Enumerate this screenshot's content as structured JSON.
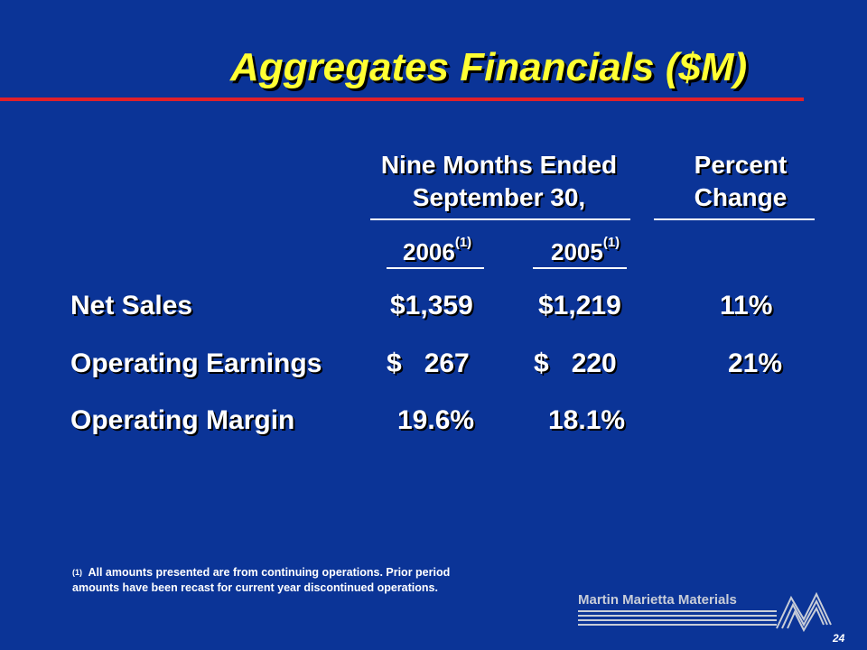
{
  "title": "Aggregates Financials ($M)",
  "header": {
    "period_line1": "Nine Months Ended",
    "period_line2": "September 30,",
    "change_line1": "Percent",
    "change_line2": "Change",
    "year1": "2006",
    "year1_note": "(1)",
    "year2": "2005",
    "year2_note": "(1)"
  },
  "rows": [
    {
      "label": "Net Sales",
      "v2006": "$1,359",
      "v2005": "$1,219",
      "change": "11%"
    },
    {
      "label": "Operating Earnings",
      "v2006": "$   267",
      "v2005": "$   220",
      "change": "21%"
    },
    {
      "label": "Operating Margin",
      "v2006": "19.6%",
      "v2005": "18.1%",
      "change": ""
    }
  ],
  "footnote": {
    "marker": "(1)",
    "text": "All amounts presented are from continuing operations. Prior period amounts have been recast for current year discontinued operations."
  },
  "logo": {
    "text": "Martin Marietta Materials"
  },
  "page_number": "24",
  "colors": {
    "background": "#0b3497",
    "title": "#ffff33",
    "rule": "#e0202a"
  }
}
